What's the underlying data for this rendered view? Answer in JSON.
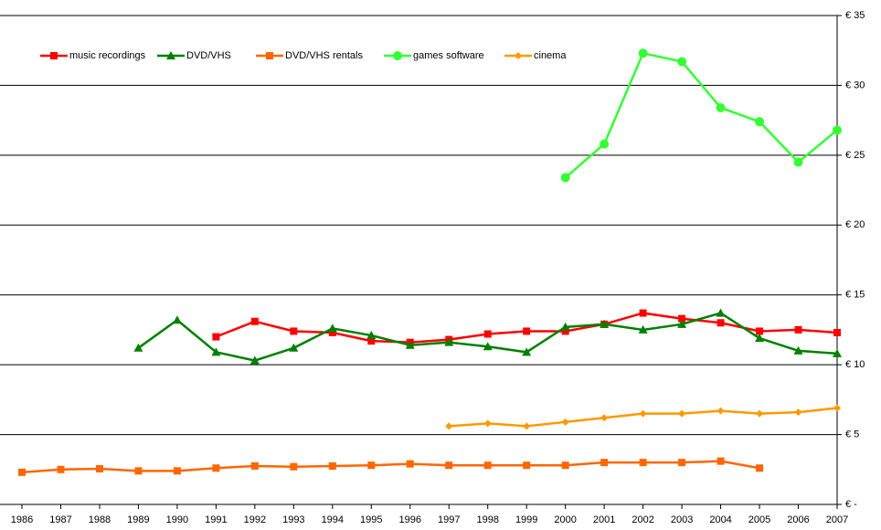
{
  "chart_data": {
    "type": "line",
    "x": [
      1986,
      1987,
      1988,
      1989,
      1990,
      1991,
      1992,
      1993,
      1994,
      1995,
      1996,
      1997,
      1998,
      1999,
      2000,
      2001,
      2002,
      2003,
      2004,
      2005,
      2006,
      2007
    ],
    "xlim": [
      1986,
      2007
    ],
    "xticks": [
      1986,
      1987,
      1988,
      1989,
      1990,
      1991,
      1992,
      1993,
      1994,
      1995,
      1996,
      1997,
      1998,
      1999,
      2000,
      2001,
      2002,
      2003,
      2004,
      2005,
      2006,
      2007
    ],
    "ylim": [
      0,
      35
    ],
    "yticks": [
      {
        "value": 0,
        "label": "€ -"
      },
      {
        "value": 5,
        "label": "€ 5"
      },
      {
        "value": 10,
        "label": "€ 10"
      },
      {
        "value": 15,
        "label": "€ 15"
      },
      {
        "value": 20,
        "label": "€ 20"
      },
      {
        "value": 25,
        "label": "€ 25"
      },
      {
        "value": 30,
        "label": "€ 30"
      },
      {
        "value": 35,
        "label": "€ 35"
      }
    ],
    "y_axis_side": "right",
    "grid": true,
    "legend": "top-left",
    "series": [
      {
        "name": "music recordings",
        "color": "#ff0000",
        "marker": "square",
        "values": [
          null,
          null,
          null,
          null,
          null,
          12.0,
          13.1,
          12.4,
          12.3,
          11.7,
          11.6,
          11.8,
          12.2,
          12.4,
          12.4,
          12.9,
          13.7,
          13.3,
          13.0,
          12.4,
          12.5,
          12.3
        ]
      },
      {
        "name": "DVD/VHS",
        "color": "#008000",
        "marker": "triangle",
        "values": [
          null,
          null,
          null,
          11.2,
          13.2,
          10.9,
          10.3,
          11.2,
          12.6,
          12.1,
          11.4,
          11.6,
          11.3,
          10.9,
          12.7,
          12.9,
          12.5,
          12.9,
          13.7,
          11.9,
          11.0,
          10.8
        ]
      },
      {
        "name": "DVD/VHS rentals",
        "color": "#ff6600",
        "marker": "square",
        "values": [
          2.3,
          2.5,
          2.55,
          2.4,
          2.4,
          2.6,
          2.75,
          2.7,
          2.75,
          2.8,
          2.9,
          2.8,
          2.8,
          2.8,
          2.8,
          3.0,
          3.0,
          3.0,
          3.1,
          2.6,
          null,
          null
        ]
      },
      {
        "name": "games software",
        "color": "#33ff33",
        "marker": "circle",
        "values": [
          null,
          null,
          null,
          null,
          null,
          null,
          null,
          null,
          null,
          null,
          null,
          null,
          null,
          null,
          23.4,
          25.8,
          32.3,
          31.7,
          28.4,
          27.4,
          24.5,
          26.8
        ]
      },
      {
        "name": "cinema",
        "color": "#ff9900",
        "marker": "diamond",
        "values": [
          null,
          null,
          null,
          null,
          null,
          null,
          null,
          null,
          null,
          null,
          null,
          5.6,
          5.8,
          5.6,
          5.9,
          6.2,
          6.5,
          6.5,
          6.7,
          6.5,
          6.6,
          6.9
        ]
      }
    ]
  }
}
